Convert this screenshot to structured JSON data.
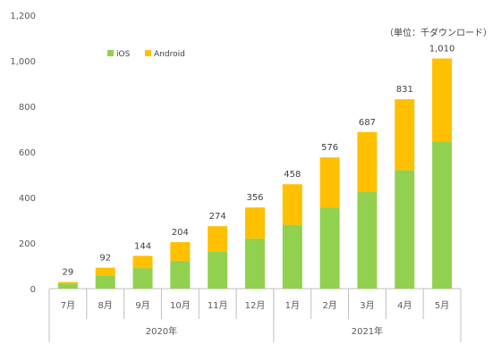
{
  "chart_data": {
    "type": "bar",
    "stacked": true,
    "unit_note": "（単位：千ダウンロード）",
    "categories": [
      "7月",
      "8月",
      "9月",
      "10月",
      "11月",
      "12月",
      "1月",
      "2月",
      "3月",
      "4月",
      "5月"
    ],
    "groups": [
      {
        "label": "2020年",
        "categories": [
          "7月",
          "8月",
          "9月",
          "10月",
          "11月",
          "12月"
        ]
      },
      {
        "label": "2021年",
        "categories": [
          "1月",
          "2月",
          "3月",
          "4月",
          "5月"
        ]
      }
    ],
    "series": [
      {
        "name": "iOS",
        "color": "#92d050",
        "values": [
          22,
          58,
          90,
          122,
          162,
          220,
          280,
          355,
          425,
          520,
          645
        ]
      },
      {
        "name": "Android",
        "color": "#ffc000",
        "values": [
          7,
          34,
          54,
          82,
          112,
          136,
          178,
          221,
          262,
          311,
          365
        ]
      }
    ],
    "totals": [
      29,
      92,
      144,
      204,
      274,
      356,
      458,
      576,
      687,
      831,
      1010
    ],
    "total_labels": [
      "29",
      "92",
      "144",
      "204",
      "274",
      "356",
      "458",
      "576",
      "687",
      "831",
      "1,010"
    ],
    "y_ticks": [
      0,
      200,
      400,
      600,
      800,
      1000,
      1200
    ],
    "y_tick_labels": [
      "0",
      "200",
      "400",
      "600",
      "800",
      "1,000",
      "1,200"
    ],
    "ylim": [
      0,
      1200
    ],
    "legend_position": "top-left",
    "grid": false
  }
}
